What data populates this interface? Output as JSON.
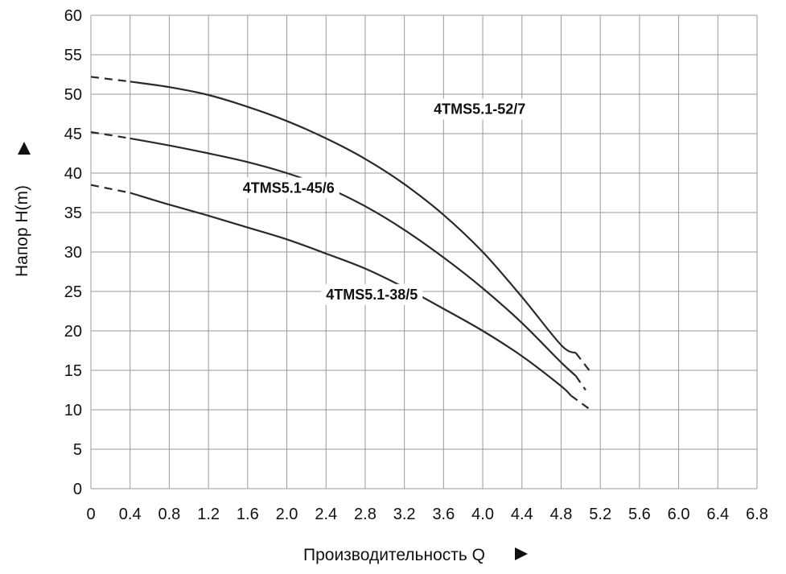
{
  "chart_data": {
    "type": "line",
    "xlabel": "Производительность Q",
    "ylabel": "Напор H(m)",
    "xlim": [
      0,
      6.8
    ],
    "ylim": [
      0,
      60
    ],
    "x_ticks": [
      "0",
      "0.4",
      "0.8",
      "1.2",
      "1.6",
      "2.0",
      "2.4",
      "2.8",
      "3.2",
      "3.6",
      "4.0",
      "4.4",
      "4.8",
      "5.2",
      "5.6",
      "6.0",
      "6.4",
      "6.8"
    ],
    "x_tick_values": [
      0,
      0.4,
      0.8,
      1.2,
      1.6,
      2.0,
      2.4,
      2.8,
      3.2,
      3.6,
      4.0,
      4.4,
      4.8,
      5.2,
      5.6,
      6.0,
      6.4,
      6.8
    ],
    "y_ticks": [
      "0",
      "5",
      "10",
      "15",
      "20",
      "25",
      "30",
      "35",
      "40",
      "45",
      "50",
      "55",
      "60"
    ],
    "y_tick_values": [
      0,
      5,
      10,
      15,
      20,
      25,
      30,
      35,
      40,
      45,
      50,
      55,
      60
    ],
    "grid": true,
    "series": [
      {
        "name": "4TMS5.1-52/7",
        "label_at": [
          3.5,
          47.5
        ],
        "dashed_start": [
          [
            0,
            52.2
          ],
          [
            0.4,
            51.6
          ]
        ],
        "x": [
          0.4,
          0.8,
          1.2,
          1.6,
          2.0,
          2.4,
          2.8,
          3.2,
          3.6,
          4.0,
          4.4,
          4.8,
          4.95
        ],
        "y": [
          51.6,
          50.9,
          49.9,
          48.4,
          46.6,
          44.4,
          41.8,
          38.6,
          34.7,
          30.0,
          24.3,
          18.2,
          17.2
        ],
        "dashed_end": [
          [
            4.95,
            17.2
          ],
          [
            5.1,
            14.8
          ]
        ]
      },
      {
        "name": "4TMS5.1-45/6",
        "label_at": [
          1.55,
          37.5
        ],
        "dashed_start": [
          [
            0,
            45.2
          ],
          [
            0.4,
            44.4
          ]
        ],
        "x": [
          0.4,
          0.8,
          1.2,
          1.6,
          2.0,
          2.4,
          2.8,
          3.2,
          3.6,
          4.0,
          4.4,
          4.8,
          4.95
        ],
        "y": [
          44.4,
          43.5,
          42.5,
          41.4,
          40.0,
          38.2,
          35.8,
          32.8,
          29.3,
          25.4,
          21.0,
          16.0,
          14.3
        ],
        "dashed_end": [
          [
            4.95,
            14.3
          ],
          [
            5.05,
            12.5
          ]
        ]
      },
      {
        "name": "4TMS5.1-38/5",
        "label_at": [
          2.4,
          24.0
        ],
        "dashed_start": [
          [
            0,
            38.5
          ],
          [
            0.4,
            37.5
          ]
        ],
        "x": [
          0.4,
          0.8,
          1.2,
          1.6,
          2.0,
          2.4,
          2.8,
          3.2,
          3.6,
          4.0,
          4.4,
          4.8,
          4.9
        ],
        "y": [
          37.5,
          36.0,
          34.6,
          33.1,
          31.6,
          29.8,
          27.9,
          25.5,
          22.8,
          20.0,
          16.8,
          13.0,
          11.8
        ],
        "dashed_end": [
          [
            4.9,
            11.8
          ],
          [
            5.1,
            10.0
          ]
        ]
      }
    ]
  }
}
